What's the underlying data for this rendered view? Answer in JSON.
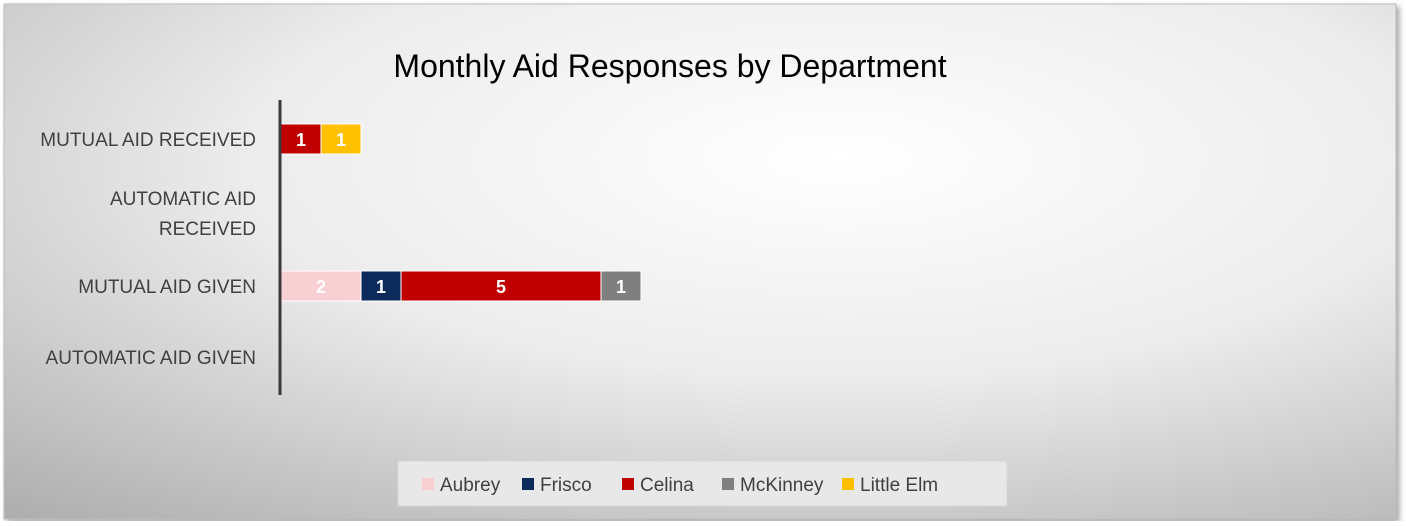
{
  "chart_data": {
    "type": "bar",
    "orientation": "horizontal",
    "stacked": true,
    "title": "Monthly Aid Responses by Department",
    "categories": [
      "MUTUAL AID RECEIVED",
      "AUTOMATIC AID RECEIVED",
      "MUTUAL AID GIVEN",
      "AUTOMATIC AID GIVEN"
    ],
    "series": [
      {
        "name": "Aubrey",
        "color": "#f8d0d3",
        "values": [
          0,
          0,
          2,
          0
        ]
      },
      {
        "name": "Frisco",
        "color": "#0d2a5c",
        "values": [
          0,
          0,
          1,
          0
        ]
      },
      {
        "name": "Celina",
        "color": "#c00000",
        "values": [
          1,
          0,
          5,
          0
        ]
      },
      {
        "name": "McKinney",
        "color": "#7f7f7f",
        "values": [
          0,
          0,
          1,
          0
        ]
      },
      {
        "name": "Little Elm",
        "color": "#ffc000",
        "values": [
          1,
          0,
          0,
          0
        ]
      }
    ],
    "data_labels": true,
    "grid": false,
    "legend_position": "bottom"
  }
}
